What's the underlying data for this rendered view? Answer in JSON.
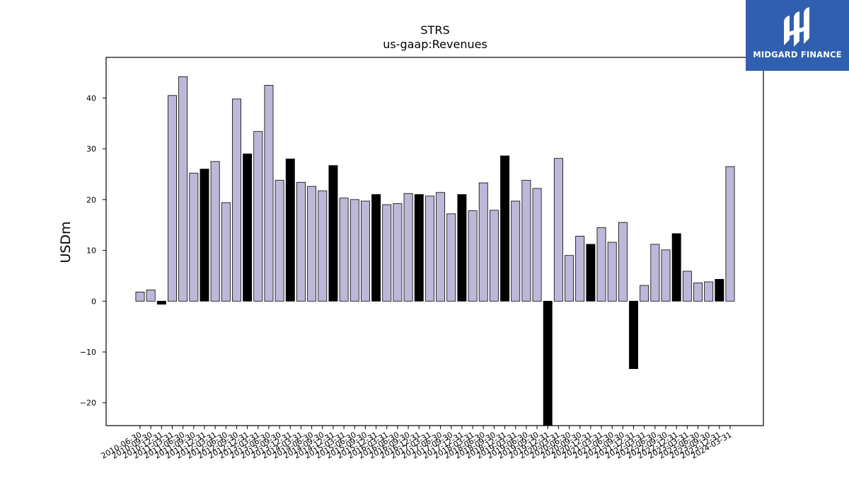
{
  "chart_data": {
    "type": "bar",
    "title": "STRS",
    "subtitle": "us-gaap:Revenues",
    "xlabel": "",
    "ylabel": "USDm",
    "ylim": [
      -24.5,
      48
    ],
    "yticks": [
      -20,
      -10,
      0,
      10,
      20,
      30,
      40
    ],
    "grid": false,
    "bar_color": "#bcb8d9",
    "highlight_color": "#000000",
    "categories": [
      "2010-06-30",
      "2010-09-30",
      "2010-12-31",
      "2011-03-31",
      "2011-06-30",
      "2011-09-30",
      "2011-12-31",
      "2012-03-31",
      "2012-06-30",
      "2012-09-30",
      "2012-12-31",
      "2013-03-31",
      "2013-06-30",
      "2013-09-30",
      "2013-12-31",
      "2014-03-31",
      "2014-06-30",
      "2014-09-30",
      "2014-12-31",
      "2015-03-31",
      "2015-06-30",
      "2015-09-30",
      "2015-12-31",
      "2016-03-31",
      "2016-06-30",
      "2016-09-30",
      "2016-12-31",
      "2017-03-31",
      "2017-06-30",
      "2017-09-30",
      "2017-12-31",
      "2018-03-31",
      "2018-06-30",
      "2018-09-30",
      "2018-12-31",
      "2019-03-31",
      "2019-06-30",
      "2019-09-30",
      "2019-12-31",
      "2020-03-31",
      "2020-06-30",
      "2020-09-30",
      "2020-12-31",
      "2021-03-31",
      "2021-06-30",
      "2021-09-30",
      "2021-12-31",
      "2022-03-31",
      "2022-06-30",
      "2022-09-30",
      "2022-12-31",
      "2023-03-31",
      "2023-06-30",
      "2023-09-30",
      "2023-12-31",
      "2024-03-31"
    ],
    "values": [
      1.8,
      2.2,
      -0.6,
      40.5,
      44.2,
      25.2,
      26.0,
      27.5,
      19.4,
      39.8,
      29.0,
      33.4,
      42.5,
      23.8,
      28.0,
      23.4,
      22.6,
      21.7,
      26.7,
      20.3,
      20.0,
      19.7,
      21.0,
      19.0,
      19.2,
      21.2,
      21.0,
      20.7,
      21.4,
      17.2,
      21.0,
      17.8,
      23.3,
      17.9,
      28.6,
      19.7,
      23.8,
      22.2,
      -25.0,
      28.1,
      9.0,
      12.8,
      11.2,
      14.5,
      11.6,
      15.5,
      -13.3,
      3.1,
      11.2,
      10.1,
      13.3,
      5.9,
      3.6,
      3.8,
      4.3,
      26.5
    ],
    "highlighted": [
      false,
      false,
      true,
      false,
      false,
      false,
      true,
      false,
      false,
      false,
      true,
      false,
      false,
      false,
      true,
      false,
      false,
      false,
      true,
      false,
      false,
      false,
      true,
      false,
      false,
      false,
      true,
      false,
      false,
      false,
      true,
      false,
      false,
      false,
      true,
      false,
      false,
      false,
      true,
      false,
      false,
      false,
      true,
      false,
      false,
      false,
      true,
      false,
      false,
      false,
      true,
      false,
      false,
      false,
      true,
      false
    ]
  },
  "logo": {
    "text": "MIDGARD FINANCE"
  }
}
